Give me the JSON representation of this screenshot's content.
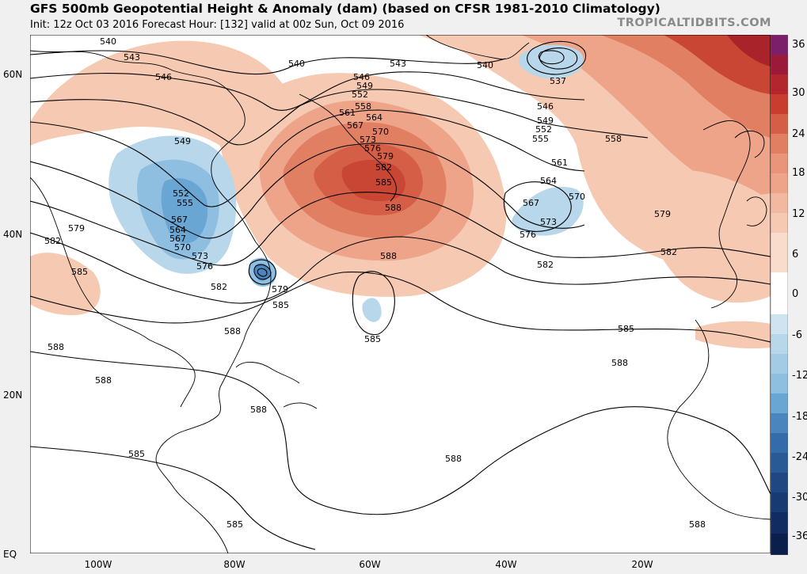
{
  "header": {
    "title": "GFS 500mb Geopotential Height & Anomaly (dam) (based on CFSR 1981-2010 Climatology)",
    "subtitle": "Init: 12z Oct 03 2016   Forecast Hour: [132]   valid at 00z Sun, Oct 09 2016",
    "brand": "TROPICALTIDBITS.COM"
  },
  "axes": {
    "lat_labels": [
      "60N",
      "40N",
      "20N",
      "EQ"
    ],
    "lon_labels": [
      "100W",
      "80W",
      "60W",
      "40W",
      "20W"
    ]
  },
  "colorbar": {
    "labels": [
      "36",
      "30",
      "24",
      "18",
      "12",
      "6",
      "0",
      "-6",
      "-12",
      "-18",
      "-24",
      "-30",
      "-36"
    ]
  },
  "contour_labels": [
    "540",
    "543",
    "546",
    "549",
    "552",
    "555",
    "558",
    "561",
    "564",
    "567",
    "570",
    "573",
    "576",
    "579",
    "582",
    "585",
    "588",
    "537"
  ],
  "colors": {
    "positive_light": "#f6c9b2",
    "positive_mid": "#e88d6f",
    "positive_strong": "#c93d2f",
    "negative_light": "#b8d7ea",
    "negative_mid": "#6aa6d3",
    "background": "#ffffff"
  }
}
